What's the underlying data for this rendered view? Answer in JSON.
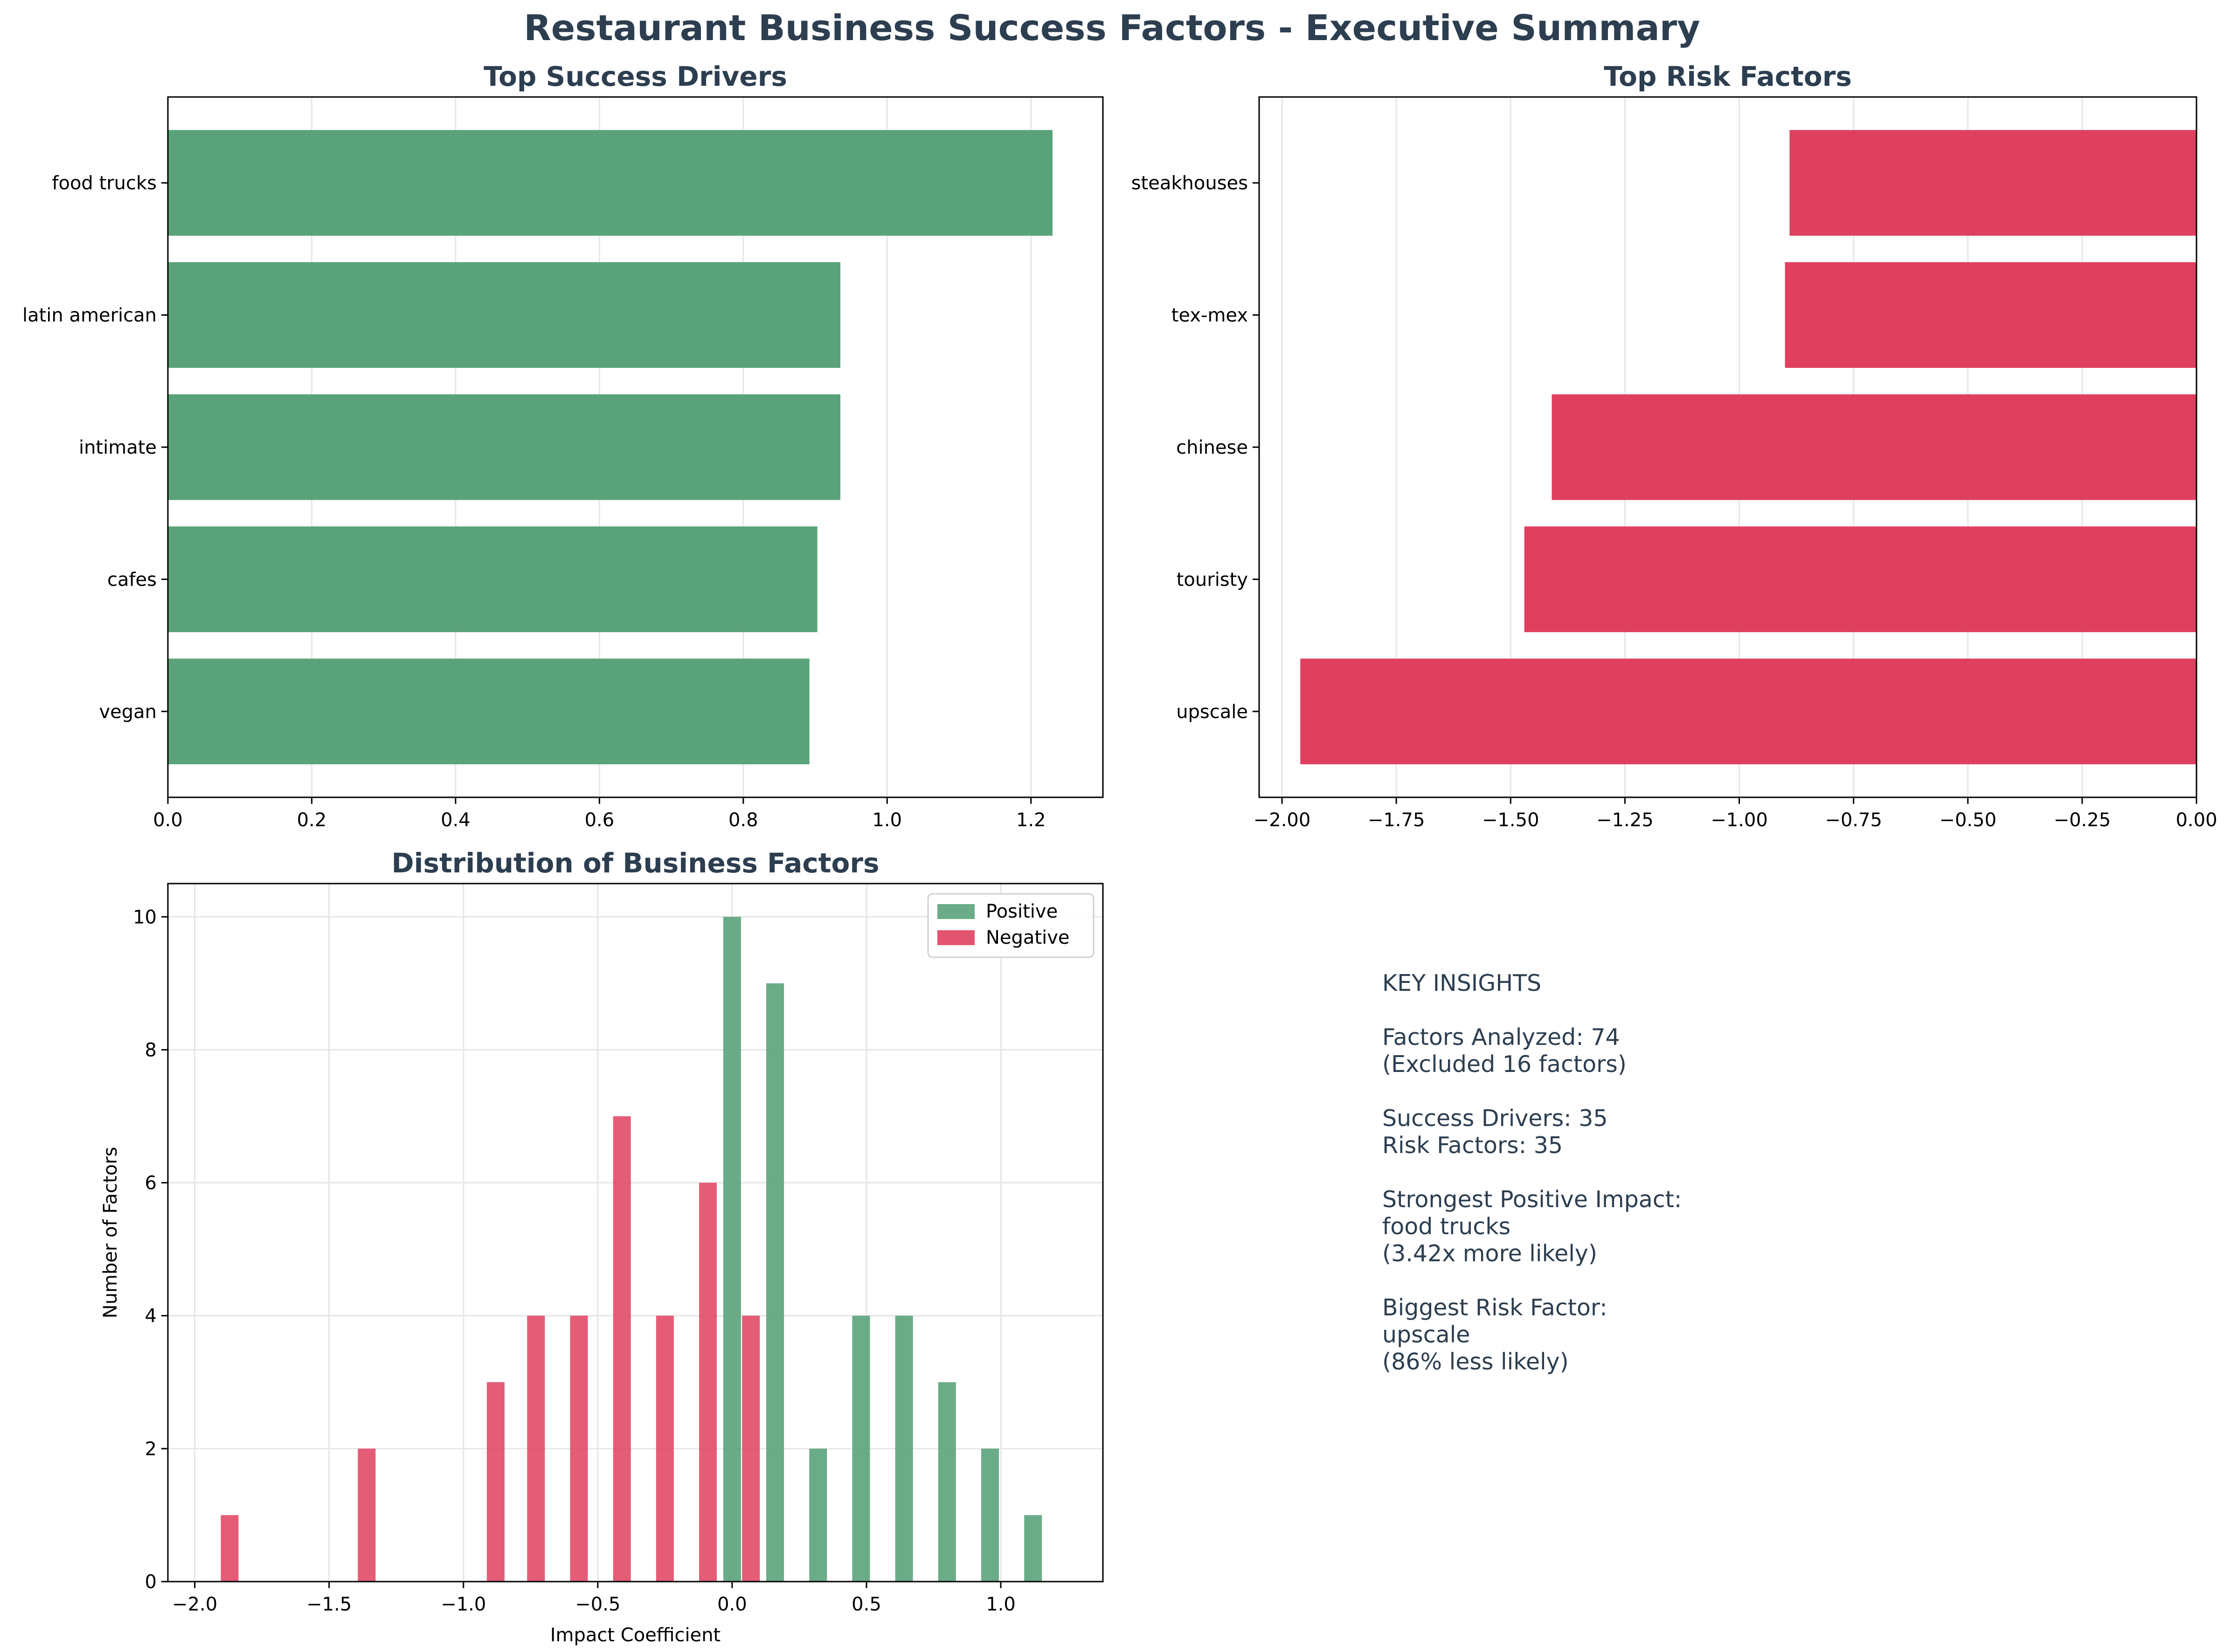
{
  "title": "Restaurant Business Success Factors - Executive Summary",
  "colors": {
    "positive": "#5aa37a",
    "negative": "#e0405f",
    "title": "#2c3e50",
    "grid": "#e6e6e6"
  },
  "chart_data": [
    {
      "type": "bar",
      "orientation": "horizontal",
      "title": "Top Success Drivers",
      "categories": [
        "food trucks",
        "latin american",
        "intimate",
        "cafes",
        "vegan"
      ],
      "values": [
        1.23,
        0.935,
        0.935,
        0.903,
        0.892
      ],
      "xlim": [
        0,
        1.3
      ],
      "xticks": [
        0.0,
        0.2,
        0.4,
        0.6,
        0.8,
        1.0,
        1.2
      ],
      "xtick_labels": [
        "0.0",
        "0.2",
        "0.4",
        "0.6",
        "0.8",
        "1.0",
        "1.2"
      ],
      "grid": true,
      "color": "positive"
    },
    {
      "type": "bar",
      "orientation": "horizontal",
      "title": "Top Risk Factors",
      "categories": [
        "steakhouses",
        "tex-mex",
        "chinese",
        "touristy",
        "upscale"
      ],
      "values": [
        -0.89,
        -0.9,
        -1.41,
        -1.47,
        -1.96
      ],
      "xlim": [
        -2.05,
        0
      ],
      "xticks": [
        -2.0,
        -1.75,
        -1.5,
        -1.25,
        -1.0,
        -0.75,
        -0.5,
        -0.25,
        0.0
      ],
      "xtick_labels": [
        "−2.00",
        "−1.75",
        "−1.50",
        "−1.25",
        "−1.00",
        "−0.75",
        "−0.50",
        "−0.25",
        "0.00"
      ],
      "grid": true,
      "color": "negative"
    },
    {
      "type": "histogram",
      "title": "Distribution of Business Factors",
      "xlabel": "Impact Coefficient",
      "ylabel": "Number of Factors",
      "xlim": [
        -2.1,
        1.38
      ],
      "ylim": [
        0,
        10.5
      ],
      "xticks": [
        -2.0,
        -1.5,
        -1.0,
        -0.5,
        0.0,
        0.5,
        1.0
      ],
      "xtick_labels": [
        "−2.0",
        "−1.5",
        "−1.0",
        "−0.5",
        "0.0",
        "0.5",
        "1.0"
      ],
      "yticks": [
        0,
        2,
        4,
        6,
        8,
        10
      ],
      "ytick_labels": [
        "0",
        "2",
        "4",
        "6",
        "8",
        "10"
      ],
      "grid": true,
      "legend": "top-right",
      "series": [
        {
          "name": "Positive",
          "color": "positive",
          "bins": [
            {
              "x": 0.0,
              "count": 10
            },
            {
              "x": 0.16,
              "count": 9
            },
            {
              "x": 0.32,
              "count": 2
            },
            {
              "x": 0.48,
              "count": 4
            },
            {
              "x": 0.64,
              "count": 4
            },
            {
              "x": 0.8,
              "count": 3
            },
            {
              "x": 0.96,
              "count": 2
            },
            {
              "x": 1.12,
              "count": 1
            }
          ]
        },
        {
          "name": "Negative",
          "color": "negative",
          "bins": [
            {
              "x": -1.87,
              "count": 1
            },
            {
              "x": -1.36,
              "count": 2
            },
            {
              "x": -0.88,
              "count": 3
            },
            {
              "x": -0.73,
              "count": 4
            },
            {
              "x": -0.57,
              "count": 4
            },
            {
              "x": -0.41,
              "count": 7
            },
            {
              "x": -0.25,
              "count": 4
            },
            {
              "x": -0.09,
              "count": 6
            },
            {
              "x": 0.07,
              "count": 4
            }
          ]
        }
      ]
    }
  ],
  "insights": [
    "KEY INSIGHTS",
    "",
    "Factors Analyzed: 74",
    "(Excluded 16 factors)",
    "",
    "Success Drivers: 35",
    "Risk Factors: 35",
    "",
    "Strongest Positive Impact:",
    "food trucks",
    "(3.42x more likely)",
    "",
    "Biggest Risk Factor:",
    "upscale",
    "(86% less likely)"
  ]
}
